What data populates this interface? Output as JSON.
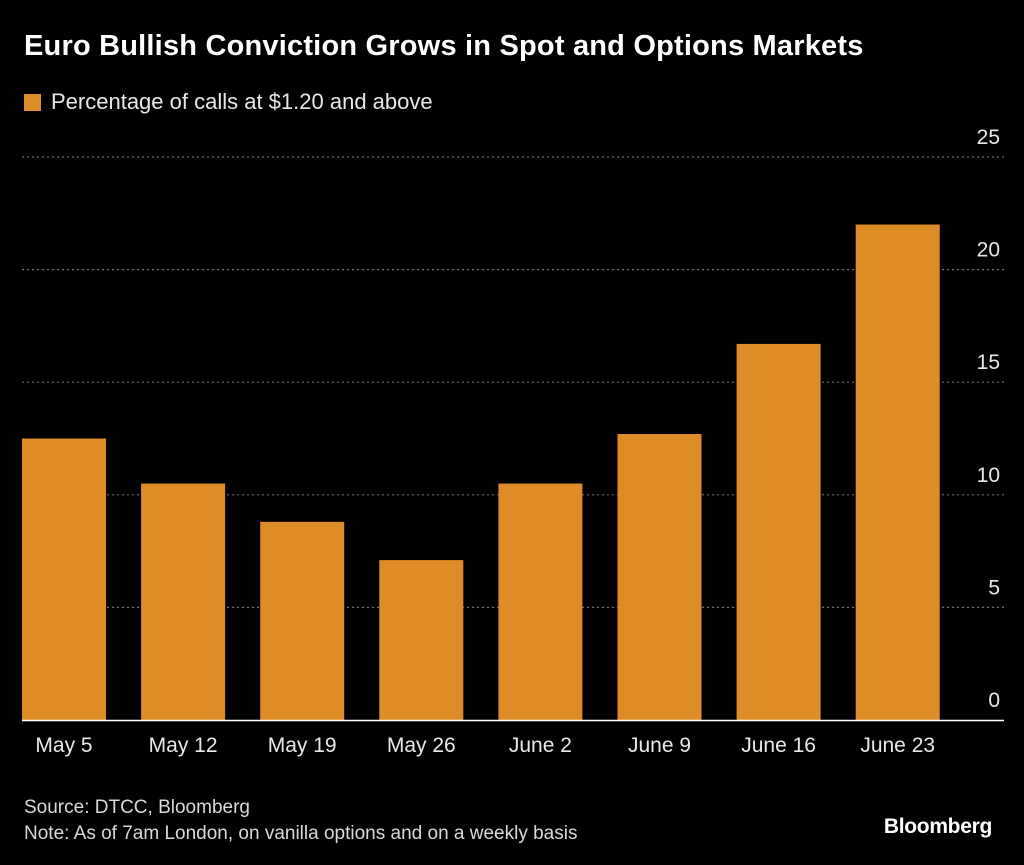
{
  "chart_data": {
    "type": "bar",
    "title": "Euro Bullish Conviction Grows in Spot and Options Markets",
    "legend": [
      {
        "label": "Percentage of calls at $1.20 and above",
        "color": "#de8c27"
      }
    ],
    "categories": [
      "May 5",
      "May 12",
      "May 19",
      "May 26",
      "June 2",
      "June 9",
      "June 16",
      "June 23"
    ],
    "series": [
      {
        "name": "Percentage of calls at $1.20 and above",
        "values": [
          12.5,
          10.5,
          8.8,
          7.1,
          10.5,
          12.7,
          16.7,
          22.0
        ]
      }
    ],
    "ylim": [
      0,
      25
    ],
    "yticks": [
      0,
      5,
      10,
      15,
      20,
      25
    ],
    "xlabel": "",
    "ylabel": "",
    "grid": true,
    "y_axis_position": "right"
  },
  "footer": {
    "source": "Source: DTCC, Bloomberg",
    "note": "Note: As of 7am London, on vanilla options and on a weekly basis"
  },
  "brand": "Bloomberg",
  "colors": {
    "background": "#000000",
    "bar": "#de8c27",
    "grid": "#6e6e6e",
    "axis_text": "#e8e8e8"
  }
}
